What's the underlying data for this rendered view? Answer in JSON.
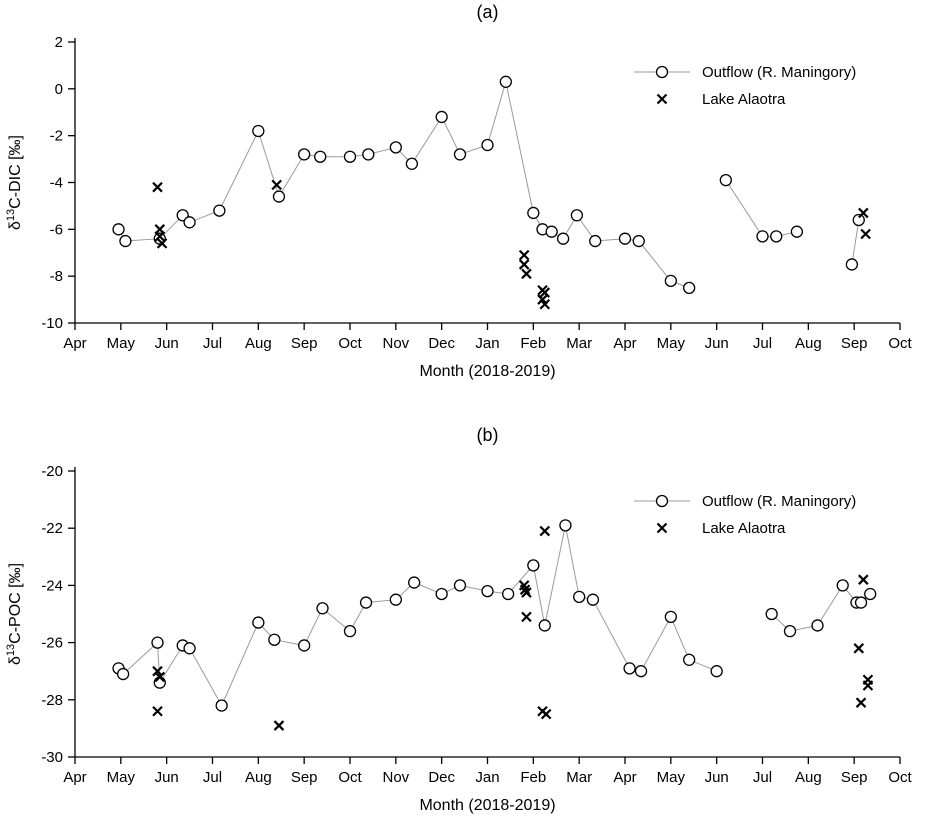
{
  "page": {
    "background": "#ffffff"
  },
  "colors": {
    "line": "#9a9a9a",
    "marker_stroke": "#000000",
    "marker_fill": "#ffffff",
    "axis": "#000000"
  },
  "chart_data": [
    {
      "type": "scatter",
      "panel_label": "(a)",
      "xlabel": "Month (2018-2019)",
      "ylabel": {
        "prefix": "δ",
        "sup": "13",
        "rest": "C-DIC [‰]"
      },
      "x_ticks": [
        "Apr",
        "May",
        "Jun",
        "Jul",
        "Aug",
        "Sep",
        "Oct",
        "Nov",
        "Dec",
        "Jan",
        "Feb",
        "Mar",
        "Apr",
        "May",
        "Jun",
        "Jul",
        "Aug",
        "Sep",
        "Oct"
      ],
      "xlim": [
        0,
        18
      ],
      "ylim": [
        -10,
        2
      ],
      "y_ticks": [
        2,
        0,
        -2,
        -4,
        -6,
        -8,
        -10
      ],
      "grid": false,
      "legend_position": "top-right",
      "legend": [
        {
          "label": "Outflow (R. Maningory)",
          "marker": "circle-line"
        },
        {
          "label": "Lake Alaotra",
          "marker": "x"
        }
      ],
      "series": [
        {
          "name": "Outflow (R. Maningory)",
          "marker": "circle",
          "line": true,
          "segments": [
            [
              [
                0.95,
                -6.0
              ],
              [
                1.1,
                -6.5
              ],
              [
                1.85,
                -6.4
              ],
              [
                2.35,
                -5.4
              ],
              [
                2.5,
                -5.7
              ],
              [
                3.15,
                -5.2
              ],
              [
                4.0,
                -1.8
              ],
              [
                4.45,
                -4.6
              ],
              [
                5.0,
                -2.8
              ],
              [
                5.35,
                -2.9
              ],
              [
                6.0,
                -2.9
              ],
              [
                6.4,
                -2.8
              ],
              [
                7.0,
                -2.5
              ],
              [
                7.35,
                -3.2
              ],
              [
                8.0,
                -1.2
              ],
              [
                8.4,
                -2.8
              ],
              [
                9.0,
                -2.4
              ],
              [
                9.4,
                0.3
              ],
              [
                10.0,
                -5.3
              ],
              [
                10.2,
                -6.0
              ],
              [
                10.4,
                -6.1
              ],
              [
                10.65,
                -6.4
              ],
              [
                10.95,
                -5.4
              ],
              [
                11.35,
                -6.5
              ],
              [
                12.0,
                -6.4
              ],
              [
                12.3,
                -6.5
              ],
              [
                13.0,
                -8.2
              ],
              [
                13.4,
                -8.5
              ]
            ],
            [
              [
                14.2,
                -3.9
              ],
              [
                15.0,
                -6.3
              ],
              [
                15.3,
                -6.3
              ],
              [
                15.75,
                -6.1
              ]
            ],
            [
              [
                16.95,
                -7.5
              ],
              [
                17.1,
                -5.6
              ]
            ]
          ]
        },
        {
          "name": "Lake Alaotra",
          "marker": "x",
          "line": false,
          "segments": [
            [
              [
                1.8,
                -4.2
              ],
              [
                1.85,
                -6.0
              ],
              [
                1.85,
                -6.3
              ],
              [
                1.9,
                -6.6
              ],
              [
                4.4,
                -4.1
              ],
              [
                9.8,
                -7.1
              ],
              [
                9.8,
                -7.5
              ],
              [
                9.85,
                -7.9
              ],
              [
                10.2,
                -8.6
              ],
              [
                10.25,
                -8.7
              ],
              [
                10.2,
                -9.0
              ],
              [
                10.25,
                -9.2
              ],
              [
                17.2,
                -5.3
              ],
              [
                17.25,
                -6.2
              ]
            ]
          ]
        }
      ]
    },
    {
      "type": "scatter",
      "panel_label": "(b)",
      "xlabel": "Month (2018-2019)",
      "ylabel": {
        "prefix": "δ",
        "sup": "13",
        "rest": "C-POC [‰]"
      },
      "x_ticks": [
        "Apr",
        "May",
        "Jun",
        "Jul",
        "Aug",
        "Sep",
        "Oct",
        "Nov",
        "Dec",
        "Jan",
        "Feb",
        "Mar",
        "Apr",
        "May",
        "Jun",
        "Jul",
        "Aug",
        "Sep",
        "Oct"
      ],
      "xlim": [
        0,
        18
      ],
      "ylim": [
        -30,
        -20
      ],
      "y_ticks": [
        -20,
        -22,
        -24,
        -26,
        -28,
        -30
      ],
      "grid": false,
      "legend_position": "top-right",
      "legend": [
        {
          "label": "Outflow (R. Maningory)",
          "marker": "circle-line"
        },
        {
          "label": "Lake Alaotra",
          "marker": "x"
        }
      ],
      "series": [
        {
          "name": "Outflow (R. Maningory)",
          "marker": "circle",
          "line": true,
          "segments": [
            [
              [
                0.95,
                -26.9
              ],
              [
                1.05,
                -27.1
              ],
              [
                1.8,
                -26.0
              ],
              [
                1.85,
                -27.4
              ],
              [
                2.35,
                -26.1
              ],
              [
                2.5,
                -26.2
              ],
              [
                3.2,
                -28.2
              ],
              [
                4.0,
                -25.3
              ],
              [
                4.35,
                -25.9
              ],
              [
                5.0,
                -26.1
              ],
              [
                5.4,
                -24.8
              ],
              [
                6.0,
                -25.6
              ],
              [
                6.35,
                -24.6
              ],
              [
                7.0,
                -24.5
              ],
              [
                7.4,
                -23.9
              ],
              [
                8.0,
                -24.3
              ],
              [
                8.4,
                -24.0
              ],
              [
                9.0,
                -24.2
              ],
              [
                9.45,
                -24.3
              ],
              [
                10.0,
                -23.3
              ],
              [
                10.25,
                -25.4
              ],
              [
                10.7,
                -21.9
              ],
              [
                11.0,
                -24.4
              ],
              [
                11.3,
                -24.5
              ],
              [
                12.1,
                -26.9
              ],
              [
                12.35,
                -27.0
              ],
              [
                13.0,
                -25.1
              ],
              [
                13.4,
                -26.6
              ],
              [
                14.0,
                -27.0
              ]
            ],
            [
              [
                15.2,
                -25.0
              ],
              [
                15.6,
                -25.6
              ],
              [
                16.2,
                -25.4
              ],
              [
                16.75,
                -24.0
              ],
              [
                17.05,
                -24.6
              ],
              [
                17.15,
                -24.6
              ],
              [
                17.35,
                -24.3
              ]
            ]
          ]
        },
        {
          "name": "Lake Alaotra",
          "marker": "x",
          "line": false,
          "segments": [
            [
              [
                1.8,
                -27.0
              ],
              [
                1.85,
                -27.2
              ],
              [
                1.8,
                -28.4
              ],
              [
                4.45,
                -28.9
              ],
              [
                9.8,
                -24.0
              ],
              [
                9.82,
                -24.15
              ],
              [
                9.85,
                -24.25
              ],
              [
                9.85,
                -25.1
              ],
              [
                10.25,
                -22.1
              ],
              [
                10.2,
                -28.4
              ],
              [
                10.28,
                -28.5
              ],
              [
                17.2,
                -23.8
              ],
              [
                17.1,
                -26.2
              ],
              [
                17.3,
                -27.3
              ],
              [
                17.3,
                -27.5
              ],
              [
                17.15,
                -28.1
              ]
            ]
          ]
        }
      ]
    }
  ]
}
